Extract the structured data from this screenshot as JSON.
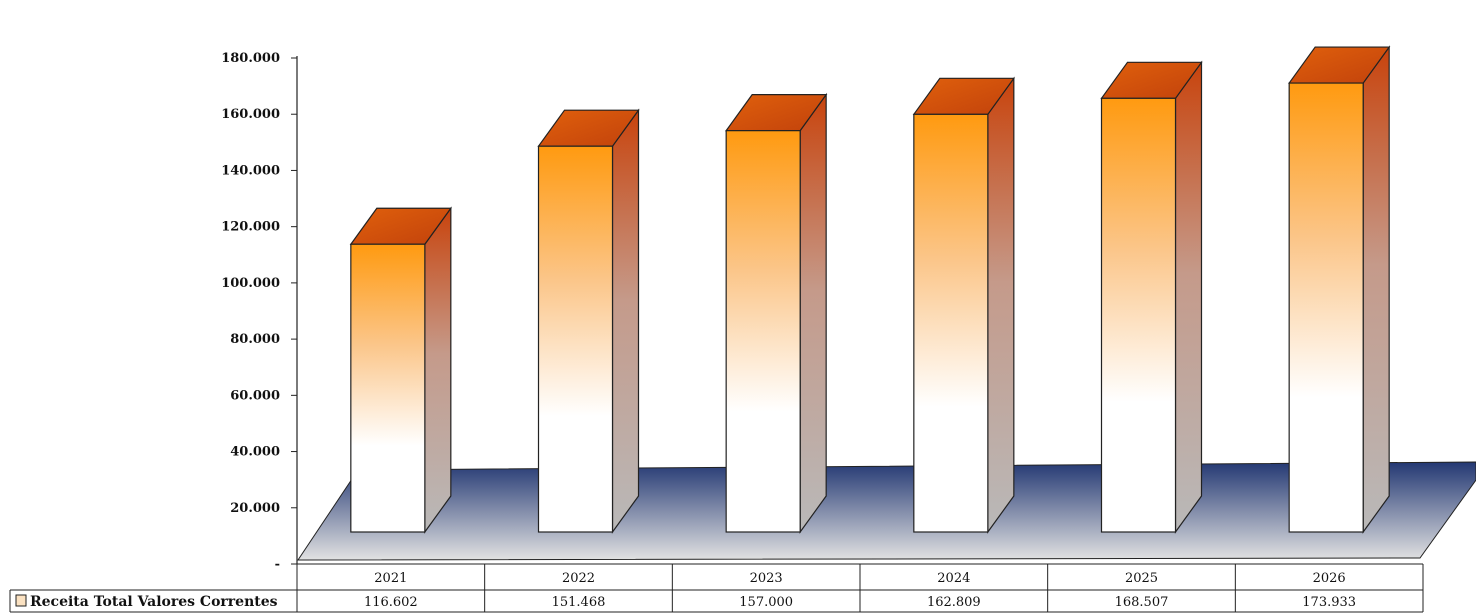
{
  "chart_data": {
    "type": "bar",
    "categories": [
      "2021",
      "2022",
      "2023",
      "2024",
      "2025",
      "2026"
    ],
    "series": [
      {
        "name": "Receita Total Valores Correntes",
        "values": [
          116602,
          151468,
          157000,
          162809,
          168507,
          173933
        ],
        "labels": [
          "116.602",
          "151.468",
          "157.000",
          "162.809",
          "168.507",
          "173.933"
        ]
      }
    ],
    "yticks": [
      "180.000",
      "160.000",
      "140.000",
      "120.000",
      "100.000",
      "80.000",
      "60.000",
      "40.000",
      "20.000",
      "-"
    ],
    "ylim": [
      0,
      180000
    ],
    "title": "",
    "xlabel": "",
    "ylabel": "",
    "legend_placement": "left of data table",
    "style": "3d-column",
    "colors": {
      "bar_top": "#d9540a",
      "bar_front_top": "#ff9a10",
      "bar_front_bottom": "#ffffff",
      "floor": "#2b3f7a",
      "floor_light": "#dcdcdc"
    }
  }
}
